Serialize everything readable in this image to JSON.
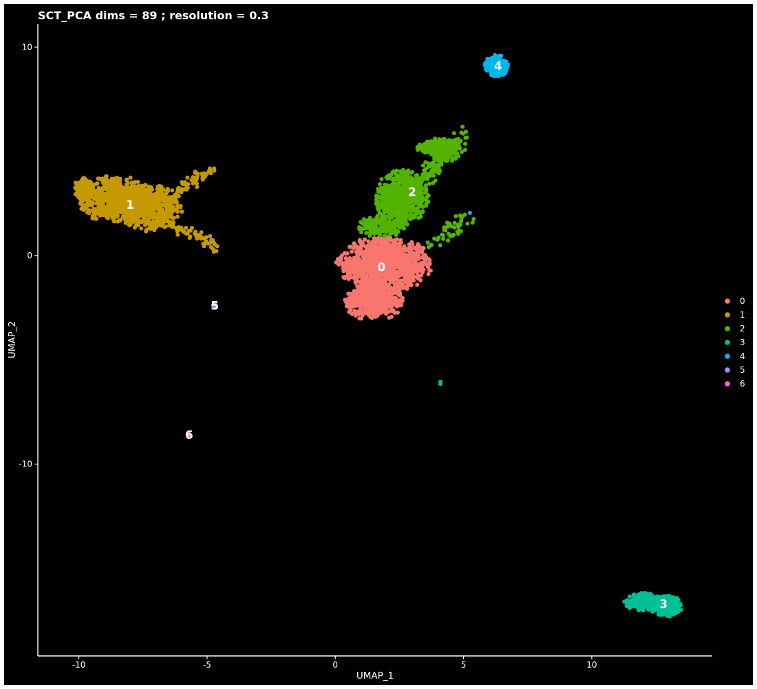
{
  "chart_data": {
    "type": "scatter",
    "title": "SCT_PCA dims =  89 ; resolution = 0.3",
    "xlabel": "UMAP_1",
    "ylabel": "UMAP_2",
    "xlim": [
      -11.6,
      14.7
    ],
    "ylim": [
      -19.2,
      11.1
    ],
    "xticks": [
      -10,
      -5,
      0,
      5,
      10
    ],
    "yticks": [
      10,
      0,
      -10
    ],
    "grid": false,
    "legend_position": "right",
    "series": [
      {
        "name": "0",
        "color": "#F8766D",
        "label": "0",
        "label_x": 1.8,
        "label_y": -0.55,
        "blobs": [
          {
            "cx": 1.9,
            "cy": -0.4,
            "rx": 1.8,
            "ry": 1.3,
            "n": 1100
          },
          {
            "cx": 1.5,
            "cy": -2.2,
            "rx": 1.1,
            "ry": 0.9,
            "n": 500
          }
        ]
      },
      {
        "name": "1",
        "color": "#C49A00",
        "label": "1",
        "label_x": -8.0,
        "label_y": 2.45,
        "blobs": [
          {
            "cx": -8.6,
            "cy": 2.7,
            "rx": 1.4,
            "ry": 1.1,
            "n": 650
          },
          {
            "cx": -7.2,
            "cy": 2.3,
            "rx": 1.2,
            "ry": 1.1,
            "n": 450
          },
          {
            "cx": -9.8,
            "cy": 3.2,
            "rx": 0.4,
            "ry": 0.5,
            "n": 120
          }
        ],
        "arms": [
          {
            "x0": -6.6,
            "y0": 2.8,
            "x1": -4.7,
            "y1": 4.2,
            "n": 60,
            "spread": 0.15
          },
          {
            "x0": -6.6,
            "y0": 1.6,
            "x1": -4.5,
            "y1": 0.4,
            "n": 60,
            "spread": 0.12
          }
        ]
      },
      {
        "name": "2",
        "color": "#53B400",
        "label": "2",
        "label_x": 3.0,
        "label_y": 3.05,
        "blobs": [
          {
            "cx": 2.6,
            "cy": 2.8,
            "rx": 1.0,
            "ry": 1.3,
            "n": 650
          },
          {
            "cx": 4.0,
            "cy": 5.2,
            "rx": 0.8,
            "ry": 0.4,
            "n": 250
          },
          {
            "cx": 1.8,
            "cy": 1.4,
            "rx": 0.9,
            "ry": 0.5,
            "n": 200
          }
        ],
        "arms": [
          {
            "x0": 3.0,
            "y0": 3.2,
            "x1": 5.0,
            "y1": 5.6,
            "n": 160,
            "spread": 0.25
          },
          {
            "x0": 3.7,
            "y0": 0.4,
            "x1": 5.1,
            "y1": 1.8,
            "n": 45,
            "spread": 0.2
          }
        ]
      },
      {
        "name": "3",
        "color": "#00C094",
        "label": "3",
        "label_x": 12.8,
        "label_y": -16.7,
        "blobs": [
          {
            "cx": 12.0,
            "cy": -16.6,
            "rx": 0.7,
            "ry": 0.4,
            "n": 220
          },
          {
            "cx": 12.9,
            "cy": -16.8,
            "rx": 0.6,
            "ry": 0.5,
            "n": 260
          }
        ],
        "singles": [
          [
            4.1,
            -6.15
          ],
          [
            4.1,
            -6.05
          ]
        ]
      },
      {
        "name": "4",
        "color": "#00B6EB",
        "label": "4",
        "label_x": 6.35,
        "label_y": 9.1,
        "blobs": [
          {
            "cx": 6.3,
            "cy": 9.1,
            "rx": 0.45,
            "ry": 0.5,
            "n": 230
          }
        ],
        "singles": [
          [
            5.25,
            2.05
          ]
        ]
      },
      {
        "name": "5",
        "color": "#A58AFF",
        "label": "5",
        "label_x": -4.7,
        "label_y": -2.4,
        "blobs": [
          {
            "cx": -4.7,
            "cy": -2.4,
            "rx": 0.07,
            "ry": 0.1,
            "n": 14
          }
        ]
      },
      {
        "name": "6",
        "color": "#FB61D7",
        "label": "6",
        "label_x": -5.7,
        "label_y": -8.6,
        "blobs": [
          {
            "cx": -5.72,
            "cy": -8.6,
            "rx": 0.06,
            "ry": 0.09,
            "n": 12
          }
        ]
      }
    ]
  }
}
